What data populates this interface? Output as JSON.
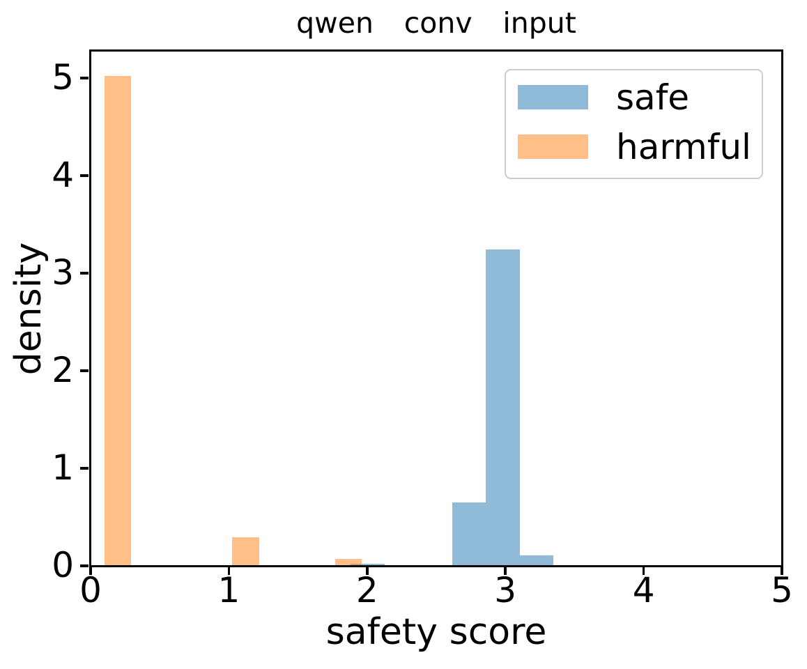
{
  "chart_data": {
    "type": "bar",
    "subtype": "density-histogram",
    "title": "qwen conv input",
    "xlabel": "safety score",
    "ylabel": "density",
    "xlim": [
      0,
      5
    ],
    "ylim": [
      0,
      5.279
    ],
    "xticks": [
      "0",
      "1",
      "2",
      "3",
      "4",
      "5"
    ],
    "yticks": [
      "0",
      "1",
      "2",
      "3",
      "4",
      "5"
    ],
    "grid": false,
    "bar_alpha": 0.5,
    "legend": {
      "position": "upper right",
      "entries": [
        {
          "label": "safe",
          "color": "#1f77b4",
          "fill": "rgba(31,119,180,0.5)"
        },
        {
          "label": "harmful",
          "color": "#ff7f0e",
          "fill": "rgba(255,127,14,0.5)"
        }
      ]
    },
    "series": [
      {
        "name": "safe",
        "color": "#1f77b4",
        "fill": "rgba(31,119,180,0.5)",
        "bars": [
          {
            "x0": 1.881,
            "x1": 2.125,
            "density": 0.02
          },
          {
            "x0": 2.614,
            "x1": 2.859,
            "density": 0.65
          },
          {
            "x0": 2.859,
            "x1": 3.103,
            "density": 3.24
          },
          {
            "x0": 3.103,
            "x1": 3.348,
            "density": 0.11
          }
        ]
      },
      {
        "name": "harmful",
        "color": "#ff7f0e",
        "fill": "rgba(255,127,14,0.5)",
        "bars": [
          {
            "x0": 0.101,
            "x1": 0.294,
            "density": 5.02
          },
          {
            "x0": 1.025,
            "x1": 1.218,
            "density": 0.29
          },
          {
            "x0": 1.768,
            "x1": 1.961,
            "density": 0.07
          }
        ]
      }
    ]
  }
}
